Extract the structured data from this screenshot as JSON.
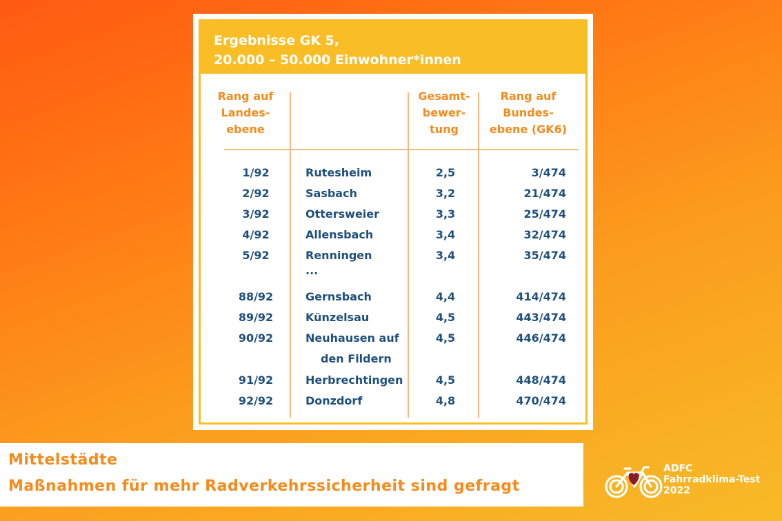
{
  "table": {
    "title_line1": "Ergebnisse GK 5,",
    "title_line2": "20.000 – 50.000 Einwohner*innen",
    "headers": {
      "rank_state": [
        "Rang auf",
        "Landes-",
        "ebene"
      ],
      "score": [
        "Gesamt-",
        "bewer-",
        "tung"
      ],
      "rank_federal": [
        "Rang auf",
        "Bundes-",
        "ebene (GK6)"
      ]
    },
    "rows": [
      {
        "rank": "1/92",
        "city": "Rutesheim",
        "score": "2,5",
        "federal": "3/474"
      },
      {
        "rank": "2/92",
        "city": "Sasbach",
        "score": "3,2",
        "federal": "21/474"
      },
      {
        "rank": "3/92",
        "city": "Ottersweier",
        "score": "3,3",
        "federal": "25/474"
      },
      {
        "rank": "4/92",
        "city": "Allensbach",
        "score": "3,4",
        "federal": "32/474"
      },
      {
        "rank": "5/92",
        "city": "Renningen",
        "score": "3,4",
        "federal": "35/474"
      },
      {
        "rank": "88/92",
        "city": "Gernsbach",
        "score": "4,4",
        "federal": "414/474"
      },
      {
        "rank": "89/92",
        "city": "Künzelsau",
        "score": "4,5",
        "federal": "443/474"
      },
      {
        "rank": "90/92",
        "city": "Neuhausen auf",
        "city2": "den Fildern",
        "score": "4,5",
        "federal": "446/474"
      },
      {
        "rank": "91/92",
        "city": "Herbrechtingen",
        "score": "4,5",
        "federal": "448/474"
      },
      {
        "rank": "92/92",
        "city": "Donzdorf",
        "score": "4,8",
        "federal": "470/474"
      }
    ],
    "ellipsis": "..."
  },
  "caption": {
    "line1": "Mittelstädte",
    "line2": "Maßnahmen für mehr Radverkehrssicherheit sind gefragt"
  },
  "brand": {
    "line1": "ADFC",
    "line2": "Fahrradklima-Test",
    "line3": "2022"
  },
  "colors": {
    "accent_orange": "#f48b1c",
    "header_yellow": "#f9bd26",
    "text_blue": "#1f4f7d",
    "heart_red": "#8b1a2b"
  },
  "icons": [
    "bicycle-heart-logo"
  ]
}
